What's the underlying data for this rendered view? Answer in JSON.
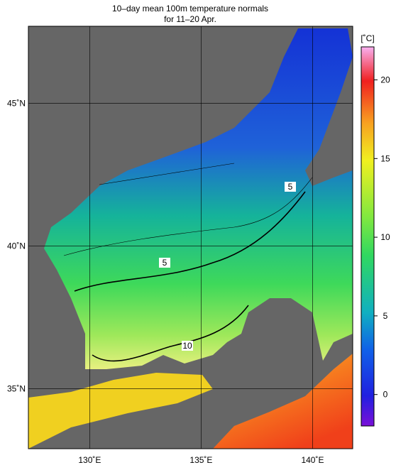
{
  "title": "10–day mean 100m temperature normals",
  "subtitle": "for 11–20 Apr.",
  "lon_range": [
    127.25,
    141.8
  ],
  "lat_range": [
    32.9,
    47.7
  ],
  "lon_ticks": [
    {
      "value": 130,
      "label": "130˚E"
    },
    {
      "value": 135,
      "label": "135˚E"
    },
    {
      "value": 140,
      "label": "140˚E"
    }
  ],
  "lat_ticks": [
    {
      "value": 35,
      "label": "35˚N"
    },
    {
      "value": 40,
      "label": "40˚N"
    },
    {
      "value": 45,
      "label": "45˚N"
    }
  ],
  "colorbar": {
    "unit": "[˚C]",
    "range": [
      -2,
      22.1
    ],
    "ticks": [
      0,
      5,
      10,
      15,
      20
    ]
  },
  "contour_labels": [
    "5",
    "5",
    "10"
  ]
}
